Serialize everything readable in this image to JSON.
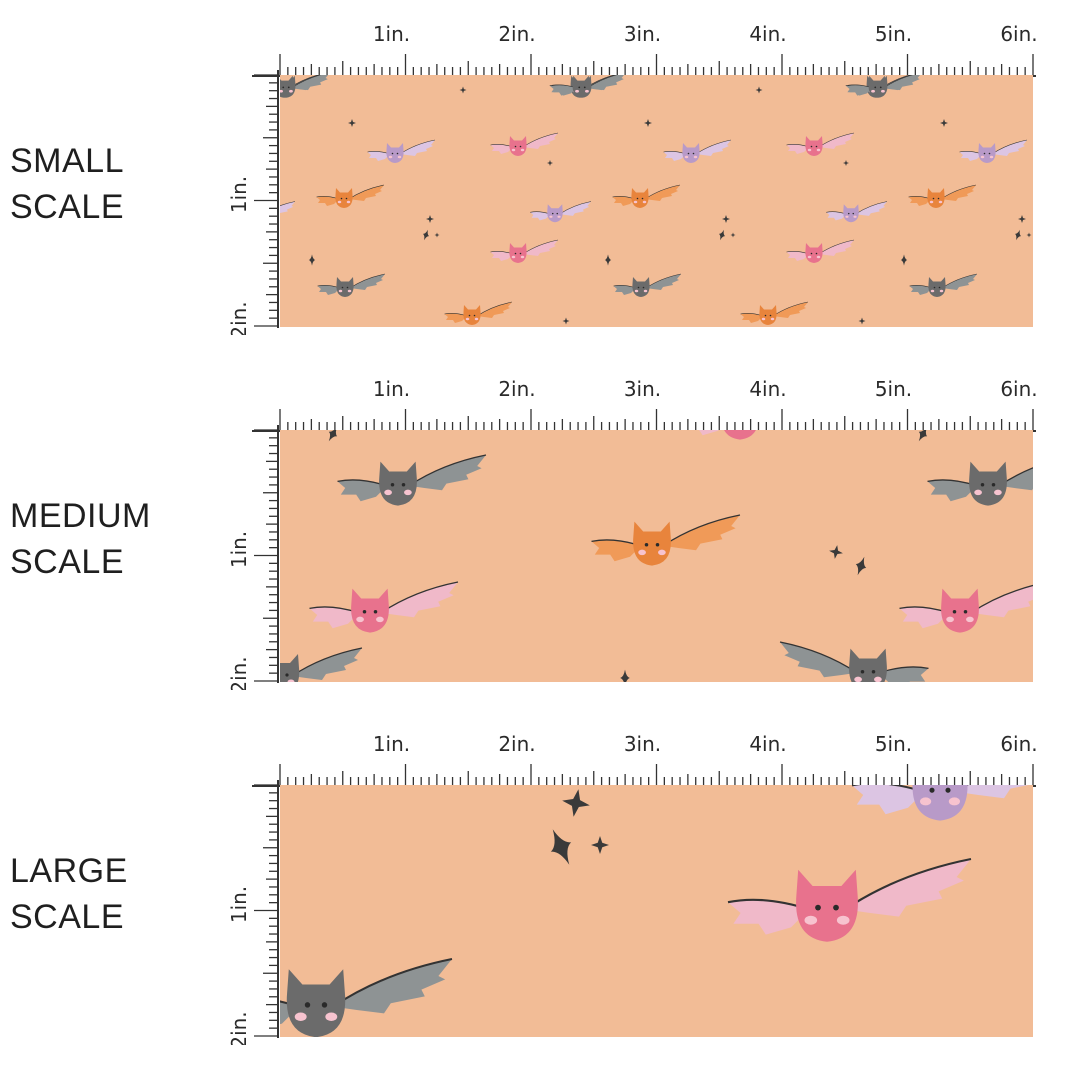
{
  "colors": {
    "background": "#f2bc96",
    "ruler_ink": "#333333",
    "bat_gray": "#6b6b6b",
    "bat_gray_wing": "#8e9394",
    "bat_pink": "#e8728d",
    "bat_pink_wing": "#f0b9c9",
    "bat_orange": "#e8843c",
    "bat_orange_wing": "#f09a58",
    "bat_purple": "#b89ac8",
    "bat_purple_wing": "#dcc5e3",
    "star": "#3a3a3a"
  },
  "ruler": {
    "top_labels": [
      "1in.",
      "2in.",
      "3in.",
      "4in.",
      "5in.",
      "6in."
    ],
    "left_labels": [
      "1in.",
      "2in."
    ]
  },
  "panels": [
    {
      "id": "small",
      "label_line1": "SMALL",
      "label_line2": "SCALE"
    },
    {
      "id": "medium",
      "label_line1": "MEDIUM",
      "label_line2": "SCALE"
    },
    {
      "id": "large",
      "label_line1": "LARGE",
      "label_line2": "SCALE"
    }
  ]
}
